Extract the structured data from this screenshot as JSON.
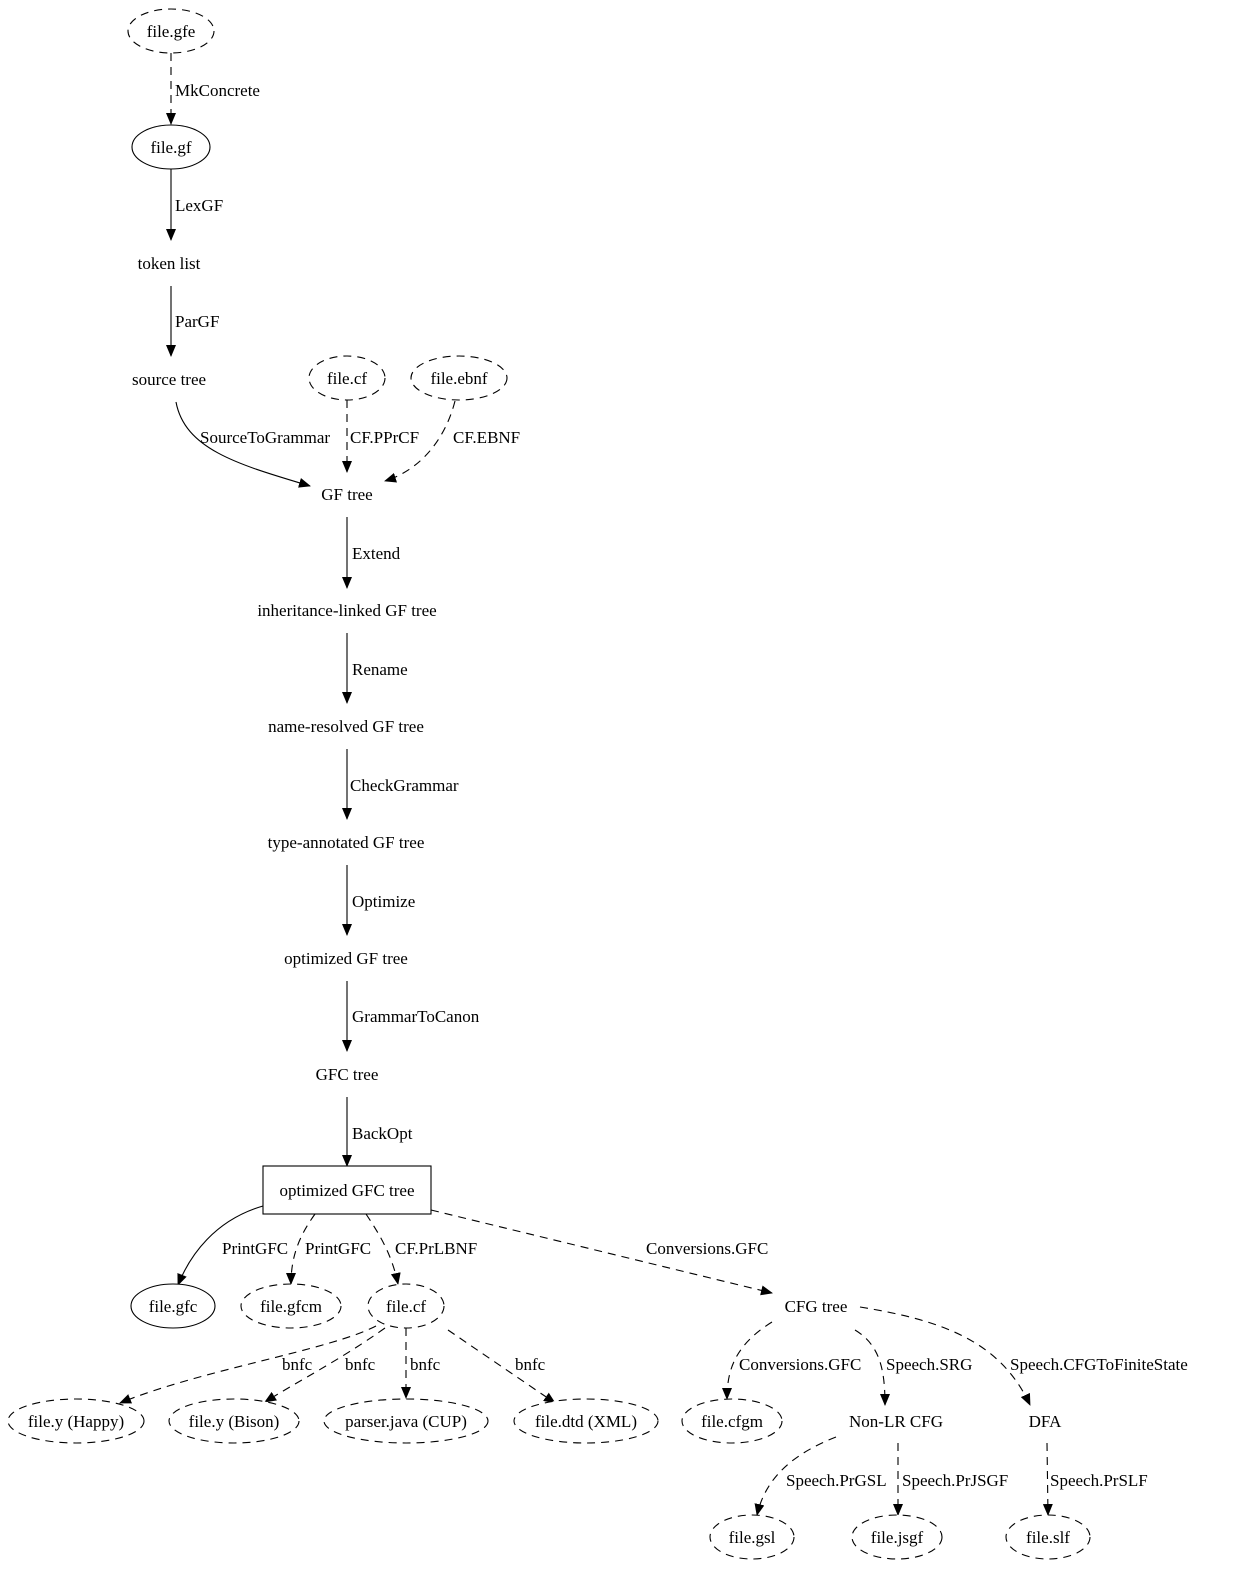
{
  "diagram": {
    "nodes": [
      {
        "id": "gfe",
        "label": "file.gfe",
        "shape": "ellipse",
        "style": "dashed"
      },
      {
        "id": "gf",
        "label": "file.gf",
        "shape": "ellipse",
        "style": "solid"
      },
      {
        "id": "tokens",
        "label": "token list",
        "shape": "plaintext"
      },
      {
        "id": "source",
        "label": "source tree",
        "shape": "plaintext"
      },
      {
        "id": "cf_in",
        "label": "file.cf",
        "shape": "ellipse",
        "style": "dashed"
      },
      {
        "id": "ebnf",
        "label": "file.ebnf",
        "shape": "ellipse",
        "style": "dashed"
      },
      {
        "id": "gftree",
        "label": "GF tree",
        "shape": "plaintext"
      },
      {
        "id": "inherit",
        "label": "inheritance-linked GF tree",
        "shape": "plaintext"
      },
      {
        "id": "named",
        "label": "name-resolved GF tree",
        "shape": "plaintext"
      },
      {
        "id": "typed",
        "label": "type-annotated GF tree",
        "shape": "plaintext"
      },
      {
        "id": "optgf",
        "label": "optimized GF tree",
        "shape": "plaintext"
      },
      {
        "id": "gfc",
        "label": "GFC tree",
        "shape": "plaintext"
      },
      {
        "id": "optgfc",
        "label": "optimized GFC tree",
        "shape": "box",
        "style": "solid"
      },
      {
        "id": "filegfc",
        "label": "file.gfc",
        "shape": "ellipse",
        "style": "solid"
      },
      {
        "id": "gfcm",
        "label": "file.gfcm",
        "shape": "ellipse",
        "style": "dashed"
      },
      {
        "id": "cf_out",
        "label": "file.cf",
        "shape": "ellipse",
        "style": "dashed"
      },
      {
        "id": "cfg",
        "label": "CFG tree",
        "shape": "plaintext"
      },
      {
        "id": "happy",
        "label": "file.y (Happy)",
        "shape": "ellipse",
        "style": "dashed"
      },
      {
        "id": "bison",
        "label": "file.y (Bison)",
        "shape": "ellipse",
        "style": "dashed"
      },
      {
        "id": "cup",
        "label": "parser.java (CUP)",
        "shape": "ellipse",
        "style": "dashed"
      },
      {
        "id": "dtd",
        "label": "file.dtd (XML)",
        "shape": "ellipse",
        "style": "dashed"
      },
      {
        "id": "cfgm",
        "label": "file.cfgm",
        "shape": "ellipse",
        "style": "dashed"
      },
      {
        "id": "nonlr",
        "label": "Non-LR CFG",
        "shape": "plaintext"
      },
      {
        "id": "dfa",
        "label": "DFA",
        "shape": "plaintext"
      },
      {
        "id": "gsl",
        "label": "file.gsl",
        "shape": "ellipse",
        "style": "dashed"
      },
      {
        "id": "jsgf",
        "label": "file.jsgf",
        "shape": "ellipse",
        "style": "dashed"
      },
      {
        "id": "slf",
        "label": "file.slf",
        "shape": "ellipse",
        "style": "dashed"
      }
    ],
    "edges": [
      {
        "from": "gfe",
        "to": "gf",
        "label": "MkConcrete",
        "style": "dashed"
      },
      {
        "from": "gf",
        "to": "tokens",
        "label": "LexGF",
        "style": "solid"
      },
      {
        "from": "tokens",
        "to": "source",
        "label": "ParGF",
        "style": "solid"
      },
      {
        "from": "source",
        "to": "gftree",
        "label": "SourceToGrammar",
        "style": "solid"
      },
      {
        "from": "cf_in",
        "to": "gftree",
        "label": "CF.PPrCF",
        "style": "dashed"
      },
      {
        "from": "ebnf",
        "to": "gftree",
        "label": "CF.EBNF",
        "style": "dashed"
      },
      {
        "from": "gftree",
        "to": "inherit",
        "label": "Extend",
        "style": "solid"
      },
      {
        "from": "inherit",
        "to": "named",
        "label": "Rename",
        "style": "solid"
      },
      {
        "from": "named",
        "to": "typed",
        "label": "CheckGrammar",
        "style": "solid"
      },
      {
        "from": "typed",
        "to": "optgf",
        "label": "Optimize",
        "style": "solid"
      },
      {
        "from": "optgf",
        "to": "gfc",
        "label": "GrammarToCanon",
        "style": "solid"
      },
      {
        "from": "gfc",
        "to": "optgfc",
        "label": "BackOpt",
        "style": "solid"
      },
      {
        "from": "optgfc",
        "to": "filegfc",
        "label": "PrintGFC",
        "style": "solid"
      },
      {
        "from": "optgfc",
        "to": "gfcm",
        "label": "PrintGFC",
        "style": "dashed"
      },
      {
        "from": "optgfc",
        "to": "cf_out",
        "label": "CF.PrLBNF",
        "style": "dashed"
      },
      {
        "from": "optgfc",
        "to": "cfg",
        "label": "Conversions.GFC",
        "style": "dashed"
      },
      {
        "from": "cf_out",
        "to": "happy",
        "label": "bnfc",
        "style": "dashed"
      },
      {
        "from": "cf_out",
        "to": "bison",
        "label": "bnfc",
        "style": "dashed"
      },
      {
        "from": "cf_out",
        "to": "cup",
        "label": "bnfc",
        "style": "dashed"
      },
      {
        "from": "cf_out",
        "to": "dtd",
        "label": "bnfc",
        "style": "dashed"
      },
      {
        "from": "cfg",
        "to": "cfgm",
        "label": "Conversions.GFC",
        "style": "dashed"
      },
      {
        "from": "cfg",
        "to": "nonlr",
        "label": "Speech.SRG",
        "style": "dashed"
      },
      {
        "from": "cfg",
        "to": "dfa",
        "label": "Speech.CFGToFiniteState",
        "style": "dashed"
      },
      {
        "from": "nonlr",
        "to": "gsl",
        "label": "Speech.PrGSL",
        "style": "dashed"
      },
      {
        "from": "nonlr",
        "to": "jsgf",
        "label": "Speech.PrJSGF",
        "style": "dashed"
      },
      {
        "from": "dfa",
        "to": "slf",
        "label": "Speech.PrSLF",
        "style": "dashed"
      }
    ]
  }
}
